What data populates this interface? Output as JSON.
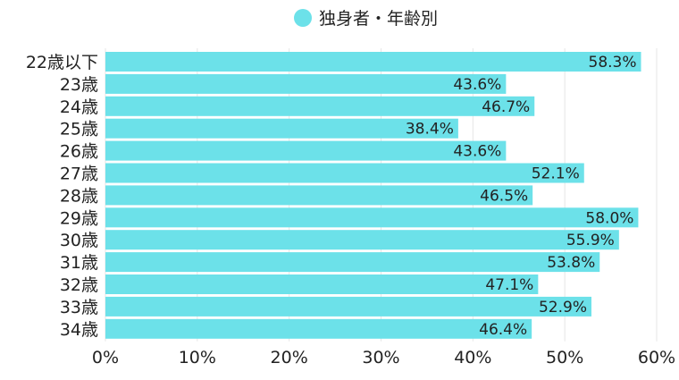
{
  "chart_data": {
    "type": "bar",
    "orientation": "horizontal",
    "legend": {
      "position": "top-center",
      "entries": [
        {
          "label": "独身者・年齢別",
          "color": "#6ce1e9"
        }
      ]
    },
    "categories": [
      "22歳以下",
      "23歳",
      "24歳",
      "25歳",
      "26歳",
      "27歳",
      "28歳",
      "29歳",
      "30歳",
      "31歳",
      "32歳",
      "33歳",
      "34歳"
    ],
    "series": [
      {
        "name": "独身者・年齢別",
        "color": "#6ce1e9",
        "values": [
          58.3,
          43.6,
          46.7,
          38.4,
          43.6,
          52.1,
          46.5,
          58.0,
          55.9,
          53.8,
          47.1,
          52.9,
          46.4
        ],
        "data_labels": [
          "58.3%",
          "43.6%",
          "46.7%",
          "38.4%",
          "43.6%",
          "52.1%",
          "46.5%",
          "58.0%",
          "55.9%",
          "53.8%",
          "47.1%",
          "52.9%",
          "46.4%"
        ]
      }
    ],
    "xlim": [
      0,
      60
    ],
    "x_ticks": [
      0,
      10,
      20,
      30,
      40,
      50,
      60
    ],
    "x_tick_labels": [
      "0%",
      "10%",
      "20%",
      "30%",
      "40%",
      "50%",
      "60%"
    ],
    "grid": {
      "vertical": true,
      "color": "#e6e6e6"
    },
    "colors": {
      "bar": "#6ce1e9",
      "text": "#222222",
      "grid": "#e6e6e6"
    }
  }
}
